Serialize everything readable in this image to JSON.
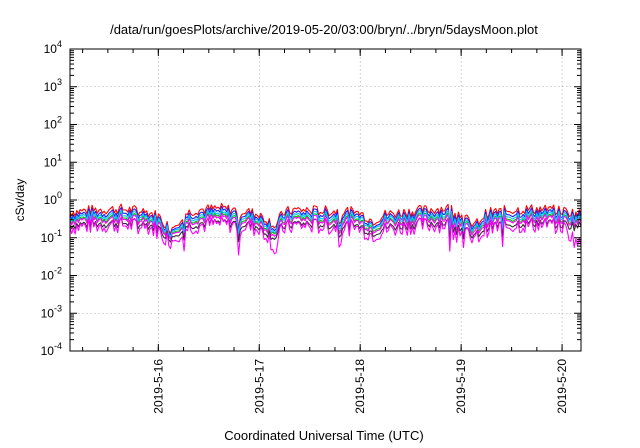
{
  "chart_data": {
    "type": "line",
    "title": "/data/run/goesPlots/archive/2019-05-20/03:00/bryn/../bryn/5daysMoon.plot",
    "xlabel": "Coordinated Universal Time (UTC)",
    "ylabel": "cSv/day",
    "yscale": "log",
    "ylim": [
      0.0001,
      10000
    ],
    "xlim": [
      "2019-05-15 03:00",
      "2019-05-20 04:30"
    ],
    "y_ticks": [
      {
        "value": 0.0001,
        "base": "10",
        "exp": "-4"
      },
      {
        "value": 0.001,
        "base": "10",
        "exp": "-3"
      },
      {
        "value": 0.01,
        "base": "10",
        "exp": "-2"
      },
      {
        "value": 0.1,
        "base": "10",
        "exp": "-1"
      },
      {
        "value": 1,
        "base": "10",
        "exp": "0"
      },
      {
        "value": 10,
        "base": "10",
        "exp": "1"
      },
      {
        "value": 100,
        "base": "10",
        "exp": "2"
      },
      {
        "value": 1000,
        "base": "10",
        "exp": "3"
      },
      {
        "value": 10000,
        "base": "10",
        "exp": "4"
      }
    ],
    "x_ticks": [
      "2019-5-16",
      "2019-5-17",
      "2019-5-18",
      "2019-5-19",
      "2019-5-20"
    ],
    "grid": true,
    "legend": "none",
    "series_colors": [
      "#ff0000",
      "#1a1aff",
      "#00c000",
      "#ff00ff",
      "#00c8ff",
      "#303030",
      "#ff00ff"
    ],
    "x": [
      "2019-05-15 03:00",
      "2019-05-15 09:00",
      "2019-05-15 15:00",
      "2019-05-15 21:00",
      "2019-05-16 00:00",
      "2019-05-16 03:00",
      "2019-05-16 06:00",
      "2019-05-16 09:00",
      "2019-05-16 15:00",
      "2019-05-16 21:00",
      "2019-05-17 00:00",
      "2019-05-17 02:00",
      "2019-05-17 04:00",
      "2019-05-17 05:00",
      "2019-05-17 06:00",
      "2019-05-17 09:00",
      "2019-05-17 15:00",
      "2019-05-17 21:00",
      "2019-05-18 00:00",
      "2019-05-18 03:00",
      "2019-05-18 06:00",
      "2019-05-18 12:00",
      "2019-05-18 18:00",
      "2019-05-18 21:00",
      "2019-05-19 00:00",
      "2019-05-19 03:00",
      "2019-05-19 06:00",
      "2019-05-19 12:00",
      "2019-05-19 18:00",
      "2019-05-20 00:00",
      "2019-05-20 04:30"
    ],
    "series": [
      {
        "values": [
          0.48,
          0.55,
          0.58,
          0.5,
          0.38,
          0.17,
          0.42,
          0.55,
          0.6,
          0.5,
          0.4,
          0.3,
          0.2,
          0.35,
          0.48,
          0.55,
          0.52,
          0.5,
          0.45,
          0.28,
          0.42,
          0.5,
          0.58,
          0.62,
          0.42,
          0.2,
          0.45,
          0.55,
          0.58,
          0.52,
          0.42
        ]
      },
      {
        "values": [
          0.4,
          0.45,
          0.47,
          0.42,
          0.32,
          0.15,
          0.35,
          0.45,
          0.5,
          0.42,
          0.34,
          0.26,
          0.17,
          0.3,
          0.4,
          0.45,
          0.43,
          0.42,
          0.38,
          0.24,
          0.35,
          0.42,
          0.48,
          0.5,
          0.35,
          0.17,
          0.38,
          0.45,
          0.48,
          0.43,
          0.36
        ]
      },
      {
        "values": [
          0.3,
          0.34,
          0.35,
          0.32,
          0.25,
          0.13,
          0.27,
          0.34,
          0.37,
          0.32,
          0.26,
          0.2,
          0.14,
          0.23,
          0.3,
          0.34,
          0.32,
          0.31,
          0.28,
          0.19,
          0.27,
          0.32,
          0.36,
          0.37,
          0.27,
          0.14,
          0.29,
          0.34,
          0.36,
          0.33,
          0.28
        ]
      },
      {
        "values": [
          0.28,
          0.31,
          0.32,
          0.29,
          0.23,
          0.12,
          0.25,
          0.31,
          0.33,
          0.29,
          0.24,
          0.18,
          0.12,
          0.21,
          0.27,
          0.31,
          0.29,
          0.28,
          0.26,
          0.17,
          0.25,
          0.29,
          0.32,
          0.33,
          0.25,
          0.12,
          0.26,
          0.31,
          0.33,
          0.3,
          0.25
        ]
      },
      {
        "values": [
          0.35,
          0.39,
          0.4,
          0.37,
          0.29,
          0.14,
          0.31,
          0.39,
          0.42,
          0.37,
          0.3,
          0.23,
          0.15,
          0.27,
          0.35,
          0.39,
          0.37,
          0.36,
          0.33,
          0.22,
          0.31,
          0.37,
          0.41,
          0.42,
          0.31,
          0.15,
          0.33,
          0.39,
          0.41,
          0.38,
          0.32
        ]
      },
      {
        "values": [
          0.22,
          0.24,
          0.25,
          0.23,
          0.18,
          0.1,
          0.2,
          0.24,
          0.26,
          0.23,
          0.19,
          0.14,
          0.1,
          0.17,
          0.21,
          0.24,
          0.23,
          0.22,
          0.2,
          0.14,
          0.19,
          0.23,
          0.25,
          0.26,
          0.19,
          0.1,
          0.2,
          0.24,
          0.26,
          0.23,
          0.2
        ]
      },
      {
        "values": [
          0.19,
          0.21,
          0.22,
          0.2,
          0.15,
          0.08,
          0.17,
          0.21,
          0.23,
          0.2,
          0.16,
          0.12,
          0.04,
          0.14,
          0.18,
          0.21,
          0.2,
          0.19,
          0.17,
          0.12,
          0.16,
          0.2,
          0.22,
          0.23,
          0.16,
          0.08,
          0.17,
          0.21,
          0.22,
          0.2,
          0.06
        ]
      }
    ]
  }
}
